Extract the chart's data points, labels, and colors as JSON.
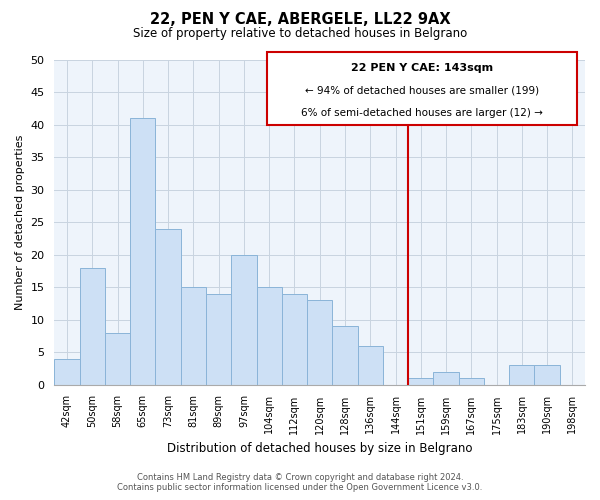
{
  "title": "22, PEN Y CAE, ABERGELE, LL22 9AX",
  "subtitle": "Size of property relative to detached houses in Belgrano",
  "xlabel": "Distribution of detached houses by size in Belgrano",
  "ylabel": "Number of detached properties",
  "bar_labels": [
    "42sqm",
    "50sqm",
    "58sqm",
    "65sqm",
    "73sqm",
    "81sqm",
    "89sqm",
    "97sqm",
    "104sqm",
    "112sqm",
    "120sqm",
    "128sqm",
    "136sqm",
    "144sqm",
    "151sqm",
    "159sqm",
    "167sqm",
    "175sqm",
    "183sqm",
    "190sqm",
    "198sqm"
  ],
  "bar_values": [
    4,
    18,
    8,
    41,
    24,
    15,
    14,
    20,
    15,
    14,
    13,
    9,
    6,
    0,
    1,
    2,
    1,
    0,
    3,
    3,
    0
  ],
  "bar_color": "#cde0f5",
  "bar_edgecolor": "#8ab4d8",
  "vline_x": 13.5,
  "vline_color": "#cc0000",
  "ylim": [
    0,
    50
  ],
  "yticks": [
    0,
    5,
    10,
    15,
    20,
    25,
    30,
    35,
    40,
    45,
    50
  ],
  "annotation_lines": [
    "22 PEN Y CAE: 143sqm",
    "← 94% of detached houses are smaller (199)",
    "6% of semi-detached houses are larger (12) →"
  ],
  "footer_line1": "Contains HM Land Registry data © Crown copyright and database right 2024.",
  "footer_line2": "Contains public sector information licensed under the Open Government Licence v3.0.",
  "background_color": "#ffffff",
  "plot_bg_color": "#eef4fb",
  "grid_color": "#c8d4e0"
}
